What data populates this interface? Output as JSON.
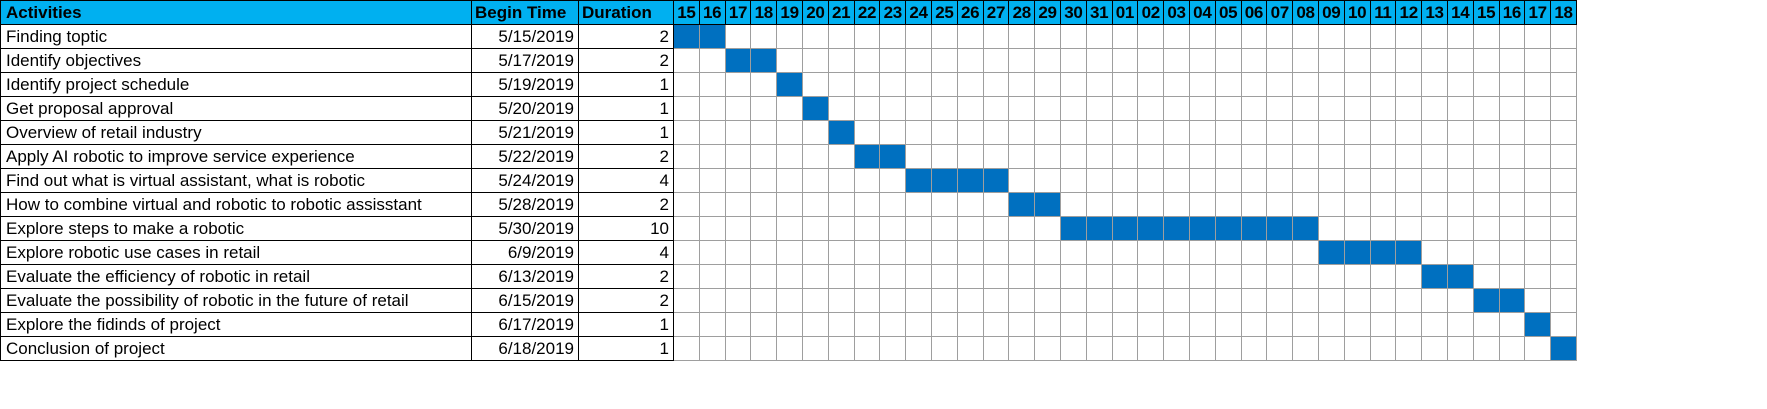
{
  "chart_data": {
    "type": "gantt",
    "columns": [
      "Activities",
      "Begin Time",
      "Duration"
    ],
    "day_labels": [
      "15",
      "16",
      "17",
      "18",
      "19",
      "20",
      "21",
      "22",
      "23",
      "24",
      "25",
      "26",
      "27",
      "28",
      "29",
      "30",
      "31",
      "01",
      "02",
      "03",
      "04",
      "05",
      "06",
      "07",
      "08",
      "09",
      "10",
      "11",
      "12",
      "13",
      "14",
      "15",
      "16",
      "17",
      "18"
    ],
    "timeline_start": "5/15/2019",
    "colors": {
      "header": "#00b0f0",
      "bar": "#0070c0",
      "grid": "#9e9e9e"
    },
    "tasks": [
      {
        "name": "Finding toptic",
        "begin": "5/15/2019",
        "duration": 2
      },
      {
        "name": "Identify objectives",
        "begin": "5/17/2019",
        "duration": 2
      },
      {
        "name": "Identify project schedule",
        "begin": "5/19/2019",
        "duration": 1
      },
      {
        "name": "Get proposal approval",
        "begin": "5/20/2019",
        "duration": 1
      },
      {
        "name": "Overview of retail industry",
        "begin": "5/21/2019",
        "duration": 1
      },
      {
        "name": "Apply AI robotic to improve service experience",
        "begin": "5/22/2019",
        "duration": 2
      },
      {
        "name": "Find out what is virtual assistant, what is robotic",
        "begin": "5/24/2019",
        "duration": 4
      },
      {
        "name": "How to combine virtual and robotic to robotic assisstant",
        "begin": "5/28/2019",
        "duration": 2
      },
      {
        "name": "Explore steps to make a robotic",
        "begin": "5/30/2019",
        "duration": 10
      },
      {
        "name": "Explore robotic use cases in retail",
        "begin": "6/9/2019",
        "duration": 4
      },
      {
        "name": "Evaluate the efficiency of robotic in retail",
        "begin": "6/13/2019",
        "duration": 2
      },
      {
        "name": "Evaluate the possibility of robotic in the future of retail",
        "begin": "6/15/2019",
        "duration": 2
      },
      {
        "name": "Explore the fidinds of project",
        "begin": "6/17/2019",
        "duration": 1
      },
      {
        "name": "Conclusion of project",
        "begin": "6/18/2019",
        "duration": 1
      }
    ]
  }
}
